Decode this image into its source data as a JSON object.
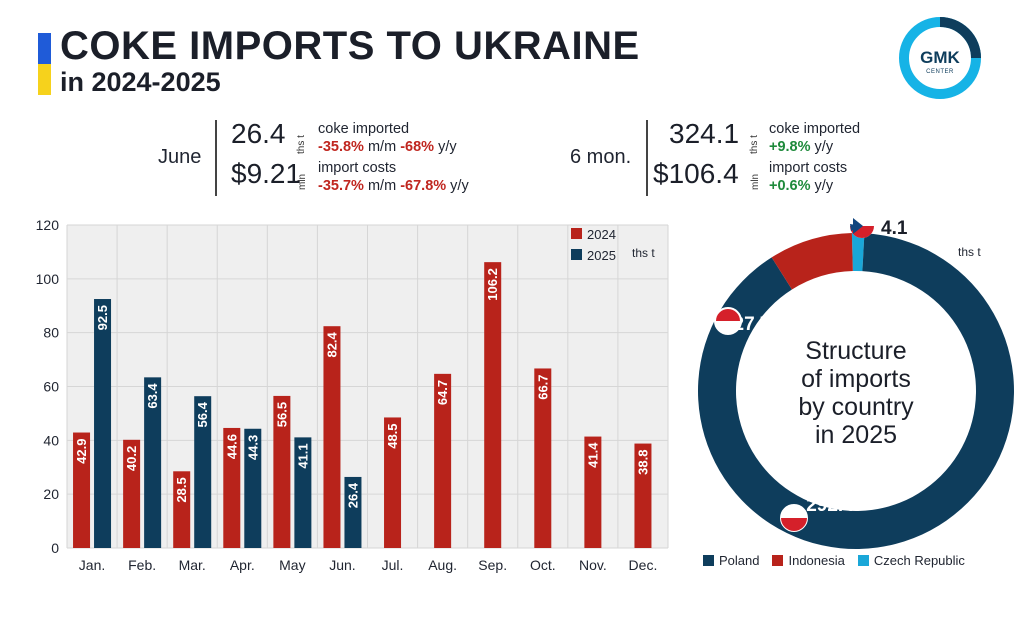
{
  "header": {
    "title": "COKE IMPORTS TO UKRAINE",
    "subtitle": "in 2024-2025",
    "logo_text": "GMK",
    "logo_sub": "CENTER"
  },
  "stats_june": {
    "period": "June",
    "volume": "26.4",
    "volume_unit": "ths t",
    "volume_label": "coke imported",
    "volume_mm": "-35.8%",
    "volume_mm_suffix": " m/m ",
    "volume_yy": "-68%",
    "volume_yy_suffix": " y/y",
    "cost": "$9.21",
    "cost_unit": "mln",
    "cost_label": "import costs",
    "cost_mm": "-35.7%",
    "cost_mm_suffix": " m/m ",
    "cost_yy": "-67.8%",
    "cost_yy_suffix": " y/y"
  },
  "stats_6mon": {
    "period": "6 mon.",
    "volume": "324.1",
    "volume_unit": "ths t",
    "volume_label": "coke imported",
    "volume_yy": "+9.8%",
    "volume_yy_suffix": " y/y",
    "cost": "$106.4",
    "cost_unit": "mln",
    "cost_label": "import costs",
    "cost_yy": "+0.6%",
    "cost_yy_suffix": " y/y"
  },
  "colors": {
    "red": "#b8231b",
    "navy": "#0e3d5c",
    "cyan": "#1aa7d8",
    "plot_bg": "#efefef",
    "grid": "#d6d6d6"
  },
  "chart_data": [
    {
      "type": "bar",
      "categories": [
        "Jan.",
        "Feb.",
        "Mar.",
        "Apr.",
        "May",
        "Jun.",
        "Jul.",
        "Aug.",
        "Sep.",
        "Oct.",
        "Nov.",
        "Dec."
      ],
      "series": [
        {
          "name": "2024",
          "values": [
            42.9,
            40.2,
            28.5,
            44.6,
            56.5,
            82.4,
            48.5,
            64.7,
            106.2,
            66.7,
            41.4,
            38.8
          ]
        },
        {
          "name": "2025",
          "values": [
            92.5,
            63.4,
            56.4,
            44.3,
            41.1,
            26.4,
            null,
            null,
            null,
            null,
            null,
            null
          ]
        }
      ],
      "unit": "ths t",
      "ylim": [
        0,
        120
      ],
      "yticks": [
        0,
        20,
        40,
        60,
        80,
        100,
        120
      ],
      "grid": true,
      "legend": "top-right"
    },
    {
      "type": "pie",
      "title": "Structure of imports by country in 2025",
      "unit": "ths t",
      "labels": [
        "Poland",
        "Indonesia",
        "Czech Republic"
      ],
      "values": [
        292.4,
        27.7,
        4.1
      ],
      "value_labels": [
        "292.4",
        "27.7",
        "4.1"
      ],
      "colors": [
        "#0e3d5c",
        "#b8231b",
        "#1aa7d8"
      ],
      "legend": "bottom"
    }
  ]
}
